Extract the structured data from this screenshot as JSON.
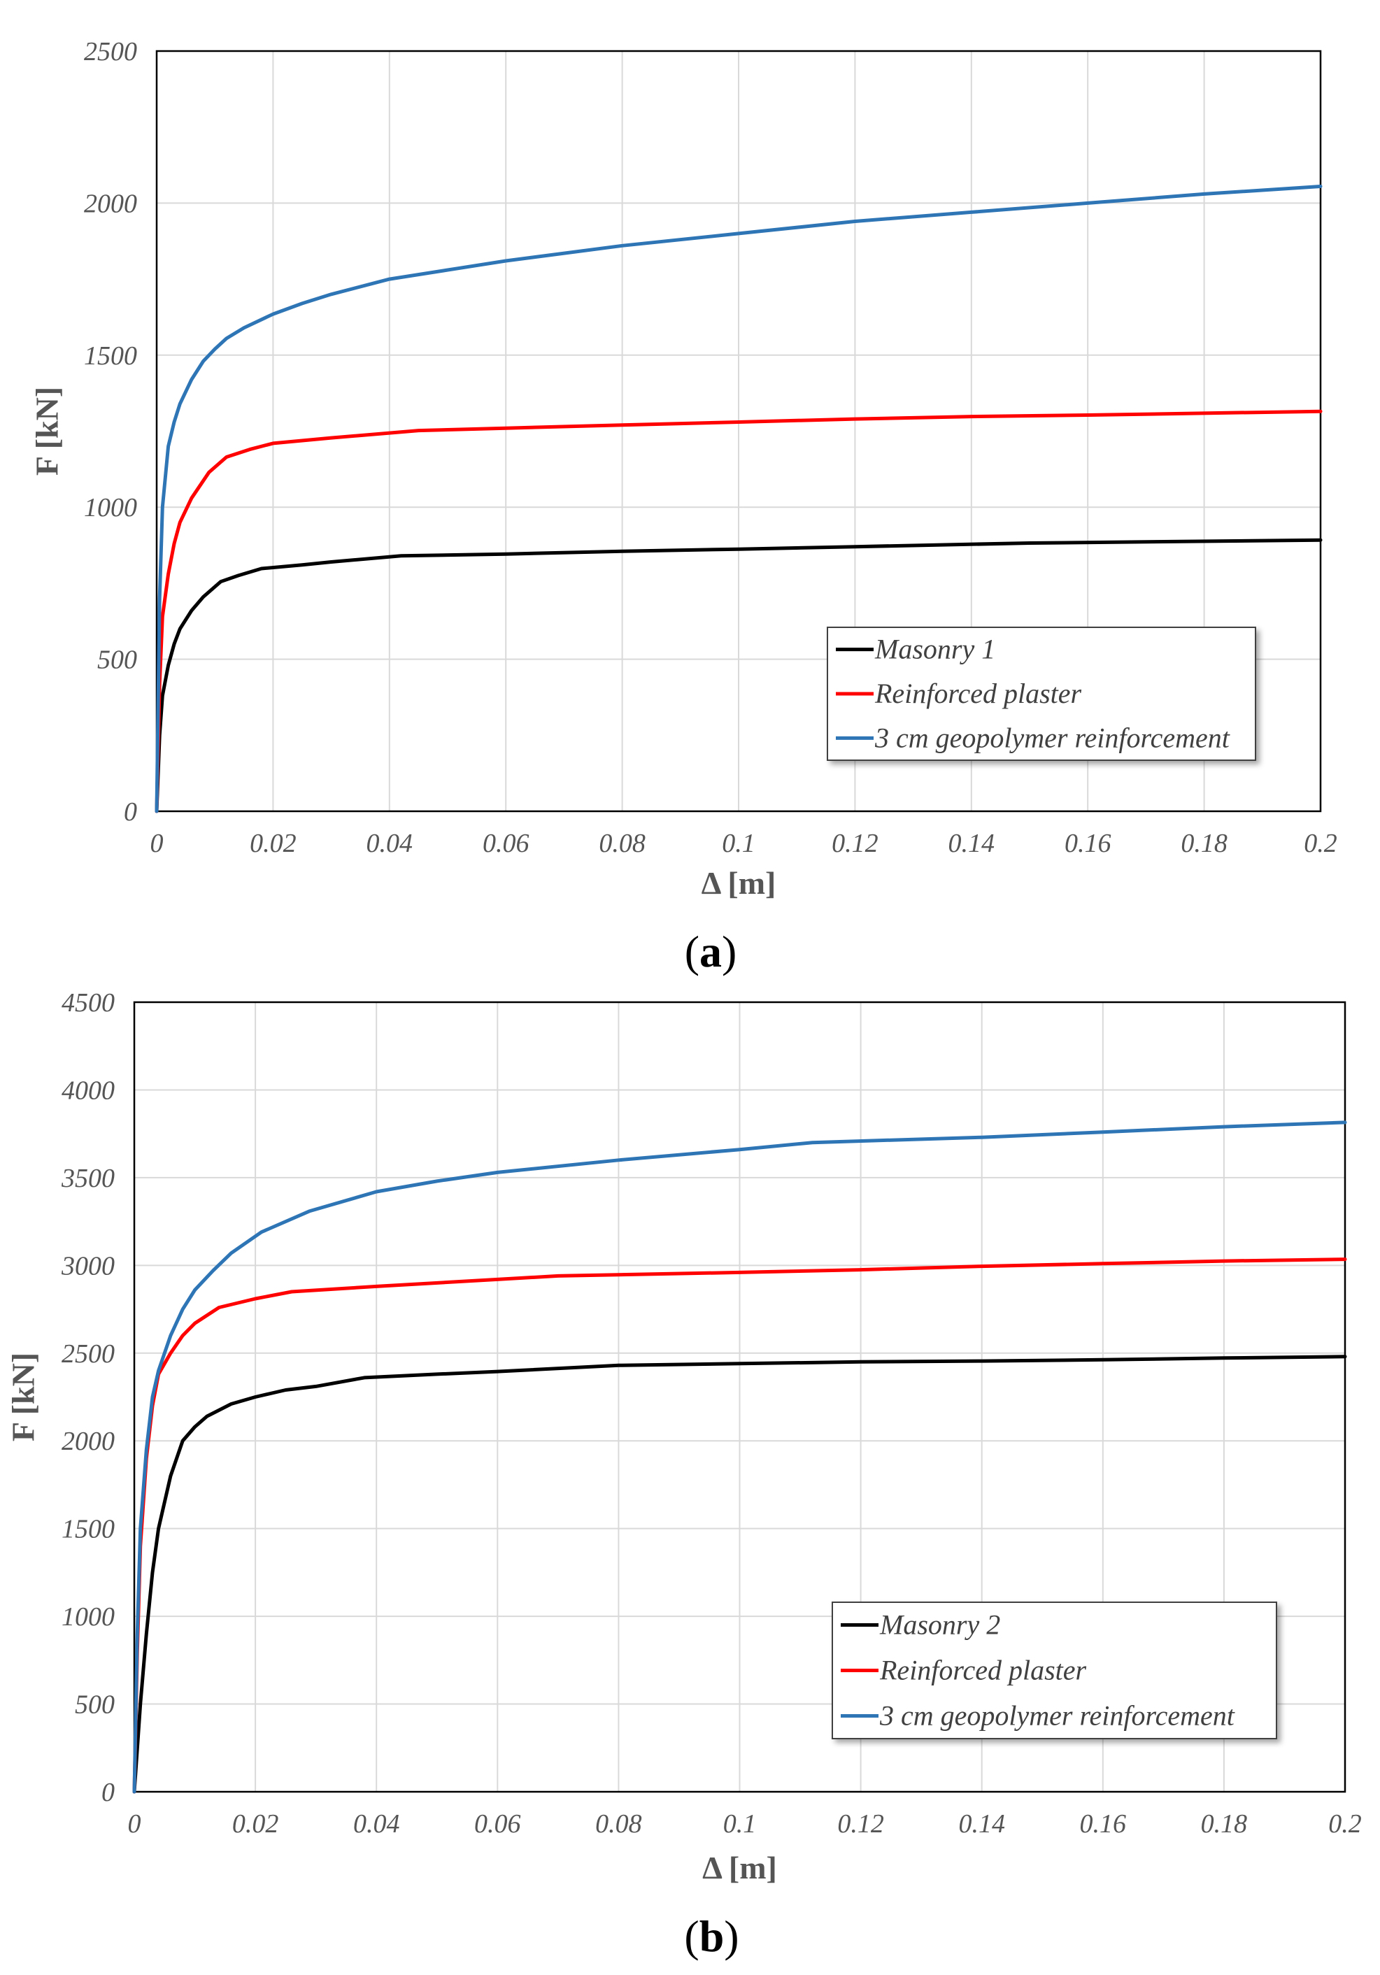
{
  "chart_data": [
    {
      "type": "line",
      "panel_label": "a",
      "title": "",
      "xlabel": "Δ [m]",
      "ylabel": "F [kN]",
      "xlim": [
        0,
        0.2
      ],
      "ylim": [
        0,
        2500
      ],
      "x_ticks": [
        "0",
        "0.02",
        "0.04",
        "0.06",
        "0.08",
        "0.1",
        "0.12",
        "0.14",
        "0.16",
        "0.18",
        "0.2"
      ],
      "y_ticks": [
        "0",
        "500",
        "1000",
        "1500",
        "2000",
        "2500"
      ],
      "grid": true,
      "legend_position": "bottom-right",
      "series": [
        {
          "name": "Masonry 1",
          "color": "#000000",
          "points": [
            [
              0,
              0
            ],
            [
              0.0005,
              250
            ],
            [
              0.001,
              380
            ],
            [
              0.002,
              480
            ],
            [
              0.003,
              550
            ],
            [
              0.004,
              600
            ],
            [
              0.006,
              660
            ],
            [
              0.008,
              705
            ],
            [
              0.011,
              755
            ],
            [
              0.014,
              775
            ],
            [
              0.018,
              798
            ],
            [
              0.025,
              810
            ],
            [
              0.03,
              820
            ],
            [
              0.042,
              840
            ],
            [
              0.06,
              846
            ],
            [
              0.08,
              855
            ],
            [
              0.1,
              862
            ],
            [
              0.12,
              870
            ],
            [
              0.15,
              882
            ],
            [
              0.2,
              892
            ]
          ]
        },
        {
          "name": "Reinforced plaster",
          "color": "#ff0000",
          "points": [
            [
              0,
              0
            ],
            [
              0.0005,
              420
            ],
            [
              0.001,
              640
            ],
            [
              0.002,
              780
            ],
            [
              0.003,
              880
            ],
            [
              0.004,
              950
            ],
            [
              0.006,
              1030
            ],
            [
              0.009,
              1115
            ],
            [
              0.012,
              1165
            ],
            [
              0.016,
              1190
            ],
            [
              0.02,
              1210
            ],
            [
              0.03,
              1228
            ],
            [
              0.045,
              1252
            ],
            [
              0.06,
              1260
            ],
            [
              0.08,
              1270
            ],
            [
              0.1,
              1280
            ],
            [
              0.12,
              1290
            ],
            [
              0.14,
              1298
            ],
            [
              0.16,
              1303
            ],
            [
              0.2,
              1315
            ]
          ]
        },
        {
          "name": "3 cm geopolymer reinforcement",
          "color": "#2e75b6",
          "points": [
            [
              0,
              0
            ],
            [
              0.0005,
              700
            ],
            [
              0.001,
              1000
            ],
            [
              0.002,
              1200
            ],
            [
              0.003,
              1280
            ],
            [
              0.004,
              1340
            ],
            [
              0.006,
              1420
            ],
            [
              0.008,
              1480
            ],
            [
              0.01,
              1520
            ],
            [
              0.012,
              1555
            ],
            [
              0.015,
              1590
            ],
            [
              0.02,
              1635
            ],
            [
              0.025,
              1670
            ],
            [
              0.03,
              1700
            ],
            [
              0.04,
              1750
            ],
            [
              0.06,
              1810
            ],
            [
              0.08,
              1860
            ],
            [
              0.1,
              1900
            ],
            [
              0.12,
              1940
            ],
            [
              0.14,
              1970
            ],
            [
              0.16,
              2000
            ],
            [
              0.18,
              2030
            ],
            [
              0.2,
              2055
            ]
          ]
        }
      ]
    },
    {
      "type": "line",
      "panel_label": "b",
      "title": "",
      "xlabel": "Δ [m]",
      "ylabel": "F [kN]",
      "xlim": [
        0,
        0.2
      ],
      "ylim": [
        0,
        4500
      ],
      "x_ticks": [
        "0",
        "0.02",
        "0.04",
        "0.06",
        "0.08",
        "0.1",
        "0.12",
        "0.14",
        "0.16",
        "0.18",
        "0.2"
      ],
      "y_ticks": [
        "0",
        "500",
        "1000",
        "1500",
        "2000",
        "2500",
        "3000",
        "3500",
        "4000",
        "4500"
      ],
      "grid": true,
      "legend_position": "bottom-right",
      "series": [
        {
          "name": "Masonry 2",
          "color": "#000000",
          "points": [
            [
              0,
              0
            ],
            [
              0.001,
              500
            ],
            [
              0.002,
              900
            ],
            [
              0.003,
              1250
            ],
            [
              0.004,
              1500
            ],
            [
              0.006,
              1800
            ],
            [
              0.008,
              2000
            ],
            [
              0.01,
              2080
            ],
            [
              0.012,
              2140
            ],
            [
              0.016,
              2210
            ],
            [
              0.02,
              2250
            ],
            [
              0.025,
              2290
            ],
            [
              0.03,
              2310
            ],
            [
              0.038,
              2360
            ],
            [
              0.05,
              2380
            ],
            [
              0.06,
              2395
            ],
            [
              0.08,
              2430
            ],
            [
              0.1,
              2440
            ],
            [
              0.12,
              2450
            ],
            [
              0.14,
              2455
            ],
            [
              0.16,
              2462
            ],
            [
              0.18,
              2472
            ],
            [
              0.2,
              2480
            ]
          ]
        },
        {
          "name": "Reinforced plaster",
          "color": "#ff0000",
          "points": [
            [
              0,
              0
            ],
            [
              0.0005,
              800
            ],
            [
              0.001,
              1400
            ],
            [
              0.002,
              1900
            ],
            [
              0.003,
              2200
            ],
            [
              0.004,
              2380
            ],
            [
              0.006,
              2500
            ],
            [
              0.008,
              2600
            ],
            [
              0.01,
              2670
            ],
            [
              0.014,
              2760
            ],
            [
              0.02,
              2810
            ],
            [
              0.026,
              2850
            ],
            [
              0.04,
              2880
            ],
            [
              0.06,
              2920
            ],
            [
              0.07,
              2940
            ],
            [
              0.1,
              2960
            ],
            [
              0.12,
              2975
            ],
            [
              0.14,
              2995
            ],
            [
              0.16,
              3010
            ],
            [
              0.18,
              3025
            ],
            [
              0.2,
              3035
            ]
          ]
        },
        {
          "name": "3 cm geopolymer reinforcement",
          "color": "#2e75b6",
          "points": [
            [
              0,
              0
            ],
            [
              0.0005,
              900
            ],
            [
              0.001,
              1500
            ],
            [
              0.002,
              1950
            ],
            [
              0.003,
              2250
            ],
            [
              0.004,
              2400
            ],
            [
              0.006,
              2600
            ],
            [
              0.008,
              2750
            ],
            [
              0.01,
              2860
            ],
            [
              0.013,
              2970
            ],
            [
              0.016,
              3070
            ],
            [
              0.021,
              3190
            ],
            [
              0.029,
              3310
            ],
            [
              0.04,
              3420
            ],
            [
              0.05,
              3480
            ],
            [
              0.06,
              3530
            ],
            [
              0.08,
              3600
            ],
            [
              0.1,
              3660
            ],
            [
              0.112,
              3700
            ],
            [
              0.14,
              3730
            ],
            [
              0.16,
              3760
            ],
            [
              0.18,
              3790
            ],
            [
              0.2,
              3815
            ]
          ]
        }
      ]
    }
  ]
}
